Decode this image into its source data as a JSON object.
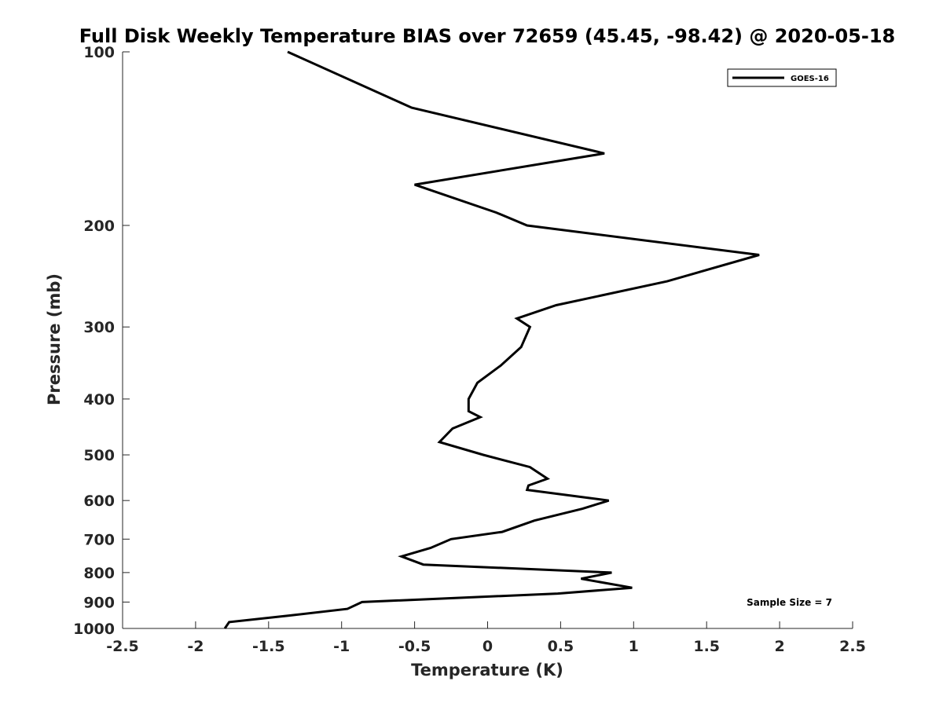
{
  "chart_data": {
    "type": "line",
    "title": "Full Disk Weekly Temperature BIAS over 72659 (45.45, -98.42) @ 2020-05-18",
    "xlabel": "Temperature (K)",
    "ylabel": "Pressure (mb)",
    "xlim": [
      -2.5,
      2.5
    ],
    "ylim": [
      1000,
      100
    ],
    "y_scale": "log",
    "y_reversed": true,
    "x_ticks": [
      "-2.5",
      "-2",
      "-1.5",
      "-1",
      "-0.5",
      "0",
      "0.5",
      "1",
      "1.5",
      "2",
      "2.5"
    ],
    "y_ticks": [
      "100",
      "200",
      "300",
      "400",
      "500",
      "600",
      "700",
      "800",
      "900",
      "1000"
    ],
    "grid": false,
    "legend_position": "top-right",
    "annotation": "Sample Size = 7",
    "series": [
      {
        "name": "GOES-16",
        "color": "#000000",
        "points": [
          {
            "x": -1.37,
            "y": 100
          },
          {
            "x": -0.52,
            "y": 125
          },
          {
            "x": 0.8,
            "y": 150
          },
          {
            "x": -0.5,
            "y": 170
          },
          {
            "x": 0.06,
            "y": 190
          },
          {
            "x": 0.27,
            "y": 200
          },
          {
            "x": 1.86,
            "y": 225
          },
          {
            "x": 1.23,
            "y": 250
          },
          {
            "x": 0.47,
            "y": 275
          },
          {
            "x": 0.2,
            "y": 290
          },
          {
            "x": 0.29,
            "y": 300
          },
          {
            "x": 0.23,
            "y": 325
          },
          {
            "x": 0.09,
            "y": 350
          },
          {
            "x": -0.07,
            "y": 375
          },
          {
            "x": -0.13,
            "y": 400
          },
          {
            "x": -0.13,
            "y": 420
          },
          {
            "x": -0.05,
            "y": 430
          },
          {
            "x": -0.24,
            "y": 450
          },
          {
            "x": -0.33,
            "y": 475
          },
          {
            "x": -0.03,
            "y": 500
          },
          {
            "x": 0.29,
            "y": 525
          },
          {
            "x": 0.41,
            "y": 550
          },
          {
            "x": 0.28,
            "y": 565
          },
          {
            "x": 0.27,
            "y": 575
          },
          {
            "x": 0.83,
            "y": 600
          },
          {
            "x": 0.65,
            "y": 620
          },
          {
            "x": 0.32,
            "y": 650
          },
          {
            "x": 0.1,
            "y": 680
          },
          {
            "x": -0.25,
            "y": 700
          },
          {
            "x": -0.39,
            "y": 725
          },
          {
            "x": -0.59,
            "y": 750
          },
          {
            "x": -0.44,
            "y": 775
          },
          {
            "x": 0.85,
            "y": 800
          },
          {
            "x": 0.64,
            "y": 820
          },
          {
            "x": 0.99,
            "y": 850
          },
          {
            "x": 0.48,
            "y": 870
          },
          {
            "x": -0.86,
            "y": 900
          },
          {
            "x": -0.96,
            "y": 925
          },
          {
            "x": -1.36,
            "y": 950
          },
          {
            "x": -1.77,
            "y": 975
          },
          {
            "x": -1.8,
            "y": 1000
          }
        ]
      }
    ]
  }
}
